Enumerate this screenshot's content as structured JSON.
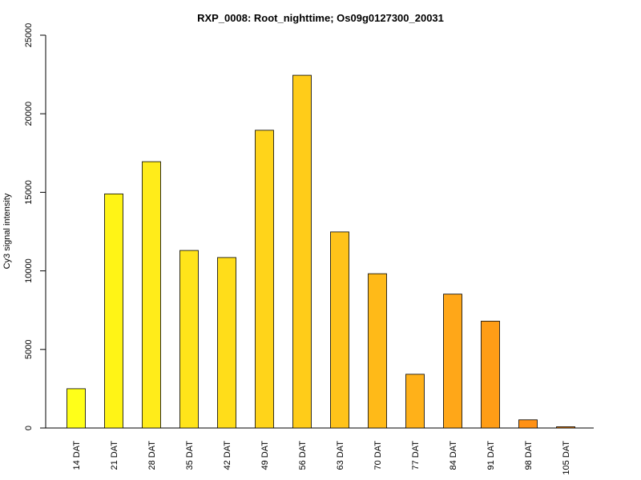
{
  "chart_data": {
    "type": "bar",
    "title": "RXP_0008: Root_nighttime; Os09g0127300_20031",
    "xlabel": "",
    "ylabel": "Cy3 signal intensity",
    "ylim": [
      0,
      25000
    ],
    "yticks": [
      0,
      5000,
      10000,
      15000,
      20000,
      25000
    ],
    "categories": [
      "14 DAT",
      "21 DAT",
      "28 DAT",
      "35 DAT",
      "42 DAT",
      "49 DAT",
      "56 DAT",
      "63 DAT",
      "70 DAT",
      "77 DAT",
      "84 DAT",
      "91 DAT",
      "98 DAT",
      "105 DAT"
    ],
    "values": [
      2500,
      14900,
      16950,
      11300,
      10850,
      18950,
      22450,
      12480,
      9820,
      3420,
      8520,
      6800,
      520,
      80
    ],
    "colors": [
      "#ffff19",
      "#fff416",
      "#ffec1a",
      "#ffe41a",
      "#ffdd1a",
      "#ffd41a",
      "#ffcc19",
      "#ffc31a",
      "#ffba18",
      "#ffb119",
      "#ffa718",
      "#ff9d16",
      "#ff9115",
      "#ff8a11"
    ],
    "grid": false,
    "legend": "none"
  }
}
